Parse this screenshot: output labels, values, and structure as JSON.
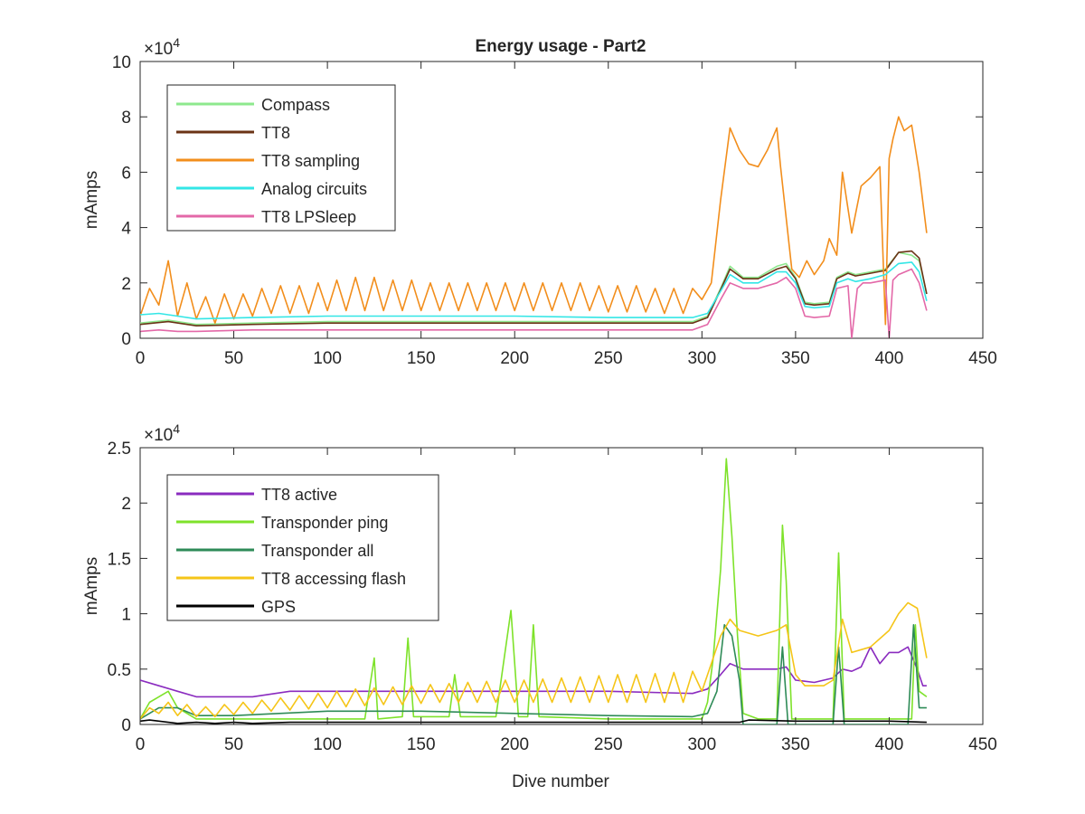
{
  "figure": {
    "title": "Energy usage - Part2",
    "xlabel": "Dive number"
  },
  "chart_data": [
    {
      "type": "line",
      "title": "Energy usage - Part2",
      "xlabel": "",
      "ylabel": "mAmps",
      "exponent_base": "×10",
      "exponent_power": "4",
      "xlim": [
        0,
        450
      ],
      "ylim": [
        0,
        100000
      ],
      "xticks": [
        0,
        50,
        100,
        150,
        200,
        250,
        300,
        350,
        400,
        450
      ],
      "xtick_labels": [
        "0",
        "50",
        "100",
        "150",
        "200",
        "250",
        "300",
        "350",
        "400",
        "450"
      ],
      "yticks": [
        0,
        20000,
        40000,
        60000,
        80000,
        100000
      ],
      "ytick_labels": [
        "0",
        "2",
        "4",
        "6",
        "8",
        "10"
      ],
      "grid": false,
      "legend_position": "top-left",
      "series": [
        {
          "name": "Compass",
          "color": "#8ee88e",
          "x": [
            0,
            15,
            30,
            60,
            100,
            150,
            200,
            250,
            295,
            303,
            310,
            315,
            322,
            330,
            340,
            345,
            350,
            355,
            360,
            368,
            372,
            378,
            382,
            390,
            398,
            405,
            412,
            416,
            420
          ],
          "y": [
            5500,
            6500,
            5000,
            5500,
            6000,
            6000,
            6000,
            6000,
            6000,
            8000,
            18000,
            26000,
            22000,
            22000,
            26000,
            27000,
            22000,
            13000,
            12500,
            13000,
            22000,
            24000,
            23000,
            24000,
            25000,
            31000,
            30000,
            28000,
            16000
          ]
        },
        {
          "name": "TT8",
          "color": "#6b3316",
          "x": [
            0,
            15,
            30,
            60,
            100,
            150,
            200,
            250,
            295,
            303,
            310,
            315,
            322,
            330,
            340,
            345,
            350,
            355,
            360,
            368,
            372,
            378,
            382,
            390,
            398,
            405,
            412,
            416,
            420
          ],
          "y": [
            5000,
            6000,
            4500,
            5000,
            5500,
            5500,
            5500,
            5500,
            5500,
            7500,
            17500,
            25000,
            21500,
            21500,
            25000,
            26000,
            21500,
            12500,
            12000,
            12500,
            21500,
            23500,
            22500,
            23500,
            24500,
            31000,
            31500,
            29000,
            16000
          ]
        },
        {
          "name": "TT8 sampling",
          "color": "#f28e1c",
          "x": [
            0,
            5,
            10,
            15,
            20,
            25,
            30,
            35,
            40,
            45,
            50,
            55,
            60,
            65,
            70,
            75,
            80,
            85,
            90,
            95,
            100,
            105,
            110,
            115,
            120,
            125,
            130,
            135,
            140,
            145,
            150,
            155,
            160,
            165,
            170,
            175,
            180,
            185,
            190,
            195,
            200,
            205,
            210,
            215,
            220,
            225,
            230,
            235,
            240,
            245,
            250,
            255,
            260,
            265,
            270,
            275,
            280,
            285,
            290,
            295,
            300,
            305,
            310,
            315,
            320,
            325,
            330,
            335,
            340,
            342,
            348,
            352,
            356,
            360,
            365,
            368,
            372,
            375,
            380,
            385,
            390,
            395,
            398,
            400,
            402,
            405,
            408,
            412,
            416,
            420
          ],
          "y": [
            8000,
            18000,
            12000,
            28000,
            8000,
            20000,
            7000,
            15000,
            5500,
            16000,
            7000,
            16000,
            8000,
            18000,
            9000,
            19000,
            9000,
            19000,
            9000,
            20000,
            10000,
            21000,
            10000,
            22000,
            10000,
            22000,
            10000,
            21000,
            10000,
            21000,
            10000,
            20000,
            10000,
            20000,
            10000,
            20000,
            10000,
            20000,
            10000,
            20000,
            10000,
            20000,
            10000,
            20000,
            10000,
            20000,
            10000,
            20000,
            10000,
            19000,
            9500,
            19000,
            9500,
            19000,
            9500,
            18000,
            9000,
            18000,
            9000,
            18000,
            14000,
            20000,
            50000,
            76000,
            68000,
            63000,
            62000,
            68000,
            76000,
            62000,
            25000,
            22000,
            28000,
            23000,
            28000,
            36000,
            30000,
            60000,
            38000,
            55000,
            58000,
            62000,
            5000,
            65000,
            72000,
            80000,
            75000,
            77000,
            60000,
            38000
          ]
        },
        {
          "name": "Analog circuits",
          "color": "#33e6e6",
          "x": [
            0,
            10,
            20,
            30,
            60,
            100,
            150,
            200,
            250,
            295,
            303,
            310,
            315,
            322,
            330,
            340,
            345,
            350,
            355,
            360,
            368,
            372,
            378,
            382,
            390,
            398,
            405,
            412,
            416,
            420
          ],
          "y": [
            8500,
            9000,
            8000,
            7000,
            7500,
            8000,
            8000,
            8000,
            7500,
            7500,
            9000,
            17000,
            23000,
            20000,
            20000,
            24000,
            24000,
            20000,
            11500,
            11000,
            11500,
            20000,
            21500,
            20500,
            21500,
            23000,
            27000,
            27500,
            24000,
            13500
          ]
        },
        {
          "name": "TT8 LPSleep",
          "color": "#e368a8",
          "x": [
            0,
            10,
            20,
            30,
            60,
            100,
            150,
            200,
            250,
            295,
            303,
            310,
            315,
            322,
            330,
            340,
            345,
            350,
            355,
            360,
            368,
            372,
            378,
            380,
            383,
            386,
            390,
            398,
            400,
            402,
            405,
            412,
            416,
            420
          ],
          "y": [
            2500,
            3000,
            2500,
            2500,
            3000,
            3000,
            3000,
            3000,
            3000,
            3000,
            5000,
            14000,
            20000,
            18000,
            18000,
            20000,
            22000,
            18000,
            8000,
            7500,
            8000,
            18000,
            19000,
            0,
            18000,
            20000,
            20000,
            21000,
            0,
            21000,
            23000,
            25000,
            20000,
            10000
          ]
        }
      ]
    },
    {
      "type": "line",
      "title": "",
      "xlabel": "Dive number",
      "ylabel": "mAmps",
      "exponent_base": "×10",
      "exponent_power": "4",
      "xlim": [
        0,
        450
      ],
      "ylim": [
        0,
        25000
      ],
      "xticks": [
        0,
        50,
        100,
        150,
        200,
        250,
        300,
        350,
        400,
        450
      ],
      "xtick_labels": [
        "0",
        "50",
        "100",
        "150",
        "200",
        "250",
        "300",
        "350",
        "400",
        "450"
      ],
      "yticks": [
        0,
        5000,
        10000,
        15000,
        20000,
        25000
      ],
      "ytick_labels": [
        "0",
        "0.5",
        "1",
        "1.5",
        "2",
        "2.5"
      ],
      "grid": false,
      "legend_position": "top-left",
      "series": [
        {
          "name": "TT8 active",
          "color": "#8a2bbf",
          "x": [
            0,
            10,
            20,
            30,
            40,
            50,
            60,
            80,
            100,
            150,
            200,
            250,
            295,
            303,
            310,
            315,
            322,
            330,
            340,
            345,
            350,
            360,
            370,
            375,
            380,
            385,
            390,
            395,
            400,
            405,
            410,
            415,
            418,
            420
          ],
          "y": [
            4000,
            3500,
            3000,
            2500,
            2500,
            2500,
            2500,
            3000,
            3000,
            3000,
            3000,
            3000,
            2800,
            3200,
            4500,
            5500,
            5000,
            5000,
            5000,
            5200,
            4000,
            3800,
            4200,
            5000,
            4800,
            5200,
            7000,
            5500,
            6500,
            6500,
            7000,
            5000,
            3500,
            3500
          ]
        },
        {
          "name": "Transponder ping",
          "color": "#7ee22a",
          "x": [
            0,
            5,
            10,
            15,
            20,
            30,
            50,
            100,
            120,
            125,
            127,
            140,
            143,
            146,
            150,
            165,
            168,
            171,
            190,
            198,
            202,
            207,
            210,
            213,
            250,
            300,
            303,
            306,
            310,
            313,
            316,
            319,
            322,
            330,
            340,
            343,
            345,
            348,
            355,
            365,
            370,
            373,
            376,
            380,
            390,
            400,
            408,
            412,
            414,
            416,
            420
          ],
          "y": [
            500,
            2000,
            2500,
            3000,
            1500,
            500,
            500,
            500,
            500,
            6000,
            500,
            700,
            7800,
            700,
            700,
            700,
            4500,
            700,
            700,
            10300,
            700,
            700,
            9000,
            700,
            500,
            500,
            2000,
            6000,
            14000,
            24000,
            17000,
            8000,
            1000,
            500,
            500,
            18000,
            13000,
            500,
            500,
            500,
            500,
            15500,
            500,
            500,
            500,
            500,
            500,
            500,
            9000,
            3000,
            2500
          ]
        },
        {
          "name": "Transponder all",
          "color": "#2e8b57",
          "x": [
            0,
            10,
            20,
            30,
            50,
            100,
            150,
            200,
            250,
            295,
            303,
            308,
            312,
            316,
            320,
            322,
            325,
            330,
            340,
            343,
            346,
            350,
            360,
            370,
            373,
            376,
            380,
            390,
            400,
            410,
            413,
            416,
            420
          ],
          "y": [
            500,
            1500,
            1500,
            800,
            800,
            1200,
            1200,
            1000,
            800,
            700,
            1000,
            3000,
            9000,
            8000,
            4000,
            0,
            0,
            0,
            0,
            7000,
            0,
            0,
            0,
            0,
            7000,
            0,
            0,
            0,
            0,
            0,
            9000,
            1500,
            1500
          ]
        },
        {
          "name": "TT8 accessing flash",
          "color": "#f5c518",
          "x": [
            0,
            5,
            10,
            15,
            20,
            25,
            30,
            35,
            40,
            45,
            50,
            55,
            60,
            65,
            70,
            75,
            80,
            85,
            90,
            95,
            100,
            105,
            110,
            115,
            120,
            125,
            130,
            135,
            140,
            145,
            150,
            155,
            160,
            165,
            170,
            175,
            180,
            185,
            190,
            195,
            200,
            205,
            210,
            215,
            220,
            225,
            230,
            235,
            240,
            245,
            250,
            255,
            260,
            265,
            270,
            275,
            280,
            285,
            290,
            295,
            300,
            305,
            310,
            315,
            320,
            330,
            340,
            345,
            350,
            355,
            360,
            365,
            370,
            375,
            380,
            390,
            400,
            405,
            410,
            415,
            420
          ],
          "y": [
            500,
            1500,
            1000,
            2000,
            800,
            1800,
            700,
            1600,
            700,
            1800,
            900,
            2000,
            1000,
            2200,
            1200,
            2400,
            1300,
            2600,
            1400,
            2800,
            1500,
            3000,
            1600,
            3200,
            1700,
            3300,
            1800,
            3400,
            1800,
            3500,
            1900,
            3600,
            2000,
            3700,
            2000,
            3800,
            2000,
            3900,
            2000,
            4000,
            2000,
            4000,
            2000,
            4100,
            2000,
            4200,
            2000,
            4300,
            2000,
            4400,
            2000,
            4500,
            2000,
            4500,
            2000,
            4600,
            2000,
            4700,
            2000,
            4800,
            3000,
            5500,
            8000,
            9500,
            8500,
            8000,
            8500,
            9000,
            4500,
            3500,
            3500,
            3500,
            4000,
            9500,
            6500,
            7000,
            8500,
            10000,
            11000,
            10500,
            6000
          ]
        },
        {
          "name": "GPS",
          "color": "#000000",
          "x": [
            0,
            5,
            10,
            15,
            20,
            30,
            40,
            50,
            60,
            80,
            100,
            150,
            200,
            250,
            300,
            320,
            325,
            350,
            400,
            420
          ],
          "y": [
            300,
            400,
            300,
            200,
            100,
            200,
            100,
            200,
            100,
            200,
            200,
            200,
            200,
            200,
            200,
            200,
            400,
            300,
            300,
            200
          ]
        }
      ]
    }
  ]
}
